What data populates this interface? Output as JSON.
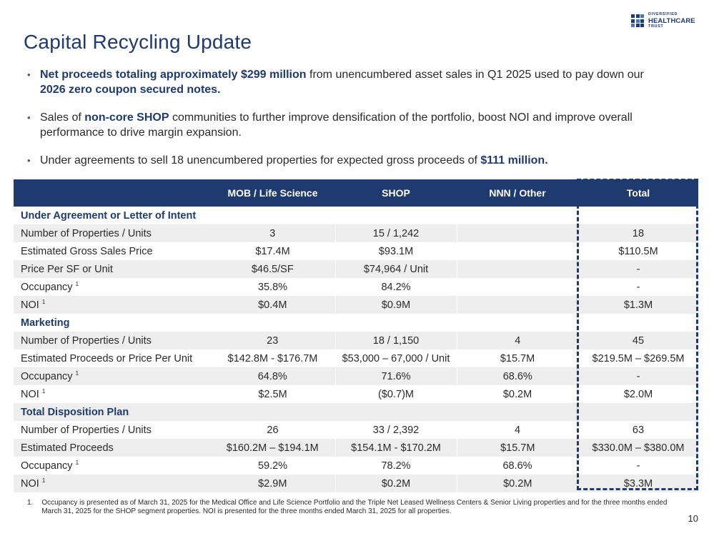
{
  "logo": {
    "line1": "DIVERSIFIED",
    "line2": "HEALTHCARE",
    "line3": "TRUST"
  },
  "title": "Capital Recycling Update",
  "bullets": [
    {
      "b1": "Net proceeds totaling approximately $299 million",
      "t1": " from unencumbered asset sales in Q1 2025 used to pay down our ",
      "b2": "2026 zero coupon secured notes."
    },
    {
      "t0": "Sales of ",
      "b1": "non-core SHOP",
      "t1": " communities to further improve densification of the portfolio, boost NOI and improve overall performance to drive margin expansion."
    },
    {
      "t0": "Under agreements to sell 18 unencumbered properties for expected gross proceeds of ",
      "b1": "$111 million."
    }
  ],
  "table": {
    "headers": [
      "",
      "MOB / Life Science",
      "SHOP",
      "NNN / Other",
      "Total"
    ],
    "sections": [
      {
        "name": "Under Agreement or Letter of Intent",
        "rows": [
          {
            "label": "Number of Properties / Units",
            "sup": "",
            "mob": "3",
            "shop": "15 / 1,242",
            "nnn": "",
            "total": "18"
          },
          {
            "label": "Estimated Gross Sales Price",
            "sup": "",
            "mob": "$17.4M",
            "shop": "$93.1M",
            "nnn": "",
            "total": "$110.5M"
          },
          {
            "label": "Price Per SF or Unit",
            "sup": "",
            "mob": "$46.5/SF",
            "shop": "$74,964 / Unit",
            "nnn": "",
            "total": "-"
          },
          {
            "label": "Occupancy",
            "sup": "1",
            "mob": "35.8%",
            "shop": "84.2%",
            "nnn": "",
            "total": "-"
          },
          {
            "label": "NOI",
            "sup": "1",
            "mob": "$0.4M",
            "shop": "$0.9M",
            "nnn": "",
            "total": "$1.3M"
          }
        ]
      },
      {
        "name": "Marketing",
        "rows": [
          {
            "label": "Number of Properties / Units",
            "sup": "",
            "mob": "23",
            "shop": "18 / 1,150",
            "nnn": "4",
            "total": "45"
          },
          {
            "label": "Estimated Proceeds or Price Per Unit",
            "sup": "",
            "mob": "$142.8M - $176.7M",
            "shop": "$53,000 – 67,000 / Unit",
            "nnn": "$15.7M",
            "total": "$219.5M – $269.5M"
          },
          {
            "label": "Occupancy",
            "sup": "1",
            "mob": "64.8%",
            "shop": "71.6%",
            "nnn": "68.6%",
            "total": "-"
          },
          {
            "label": "NOI",
            "sup": "1",
            "mob": "$2.5M",
            "shop": "($0.7)M",
            "nnn": "$0.2M",
            "total": "$2.0M"
          }
        ]
      },
      {
        "name": "Total Disposition Plan",
        "rows": [
          {
            "label": "Number of Properties / Units",
            "sup": "",
            "mob": "26",
            "shop": "33 / 2,392",
            "nnn": "4",
            "total": "63"
          },
          {
            "label": "Estimated Proceeds",
            "sup": "",
            "mob": "$160.2M – $194.1M",
            "shop": "$154.1M - $170.2M",
            "nnn": "$15.7M",
            "total": "$330.0M – $380.0M"
          },
          {
            "label": "Occupancy",
            "sup": "1",
            "mob": "59.2%",
            "shop": "78.2%",
            "nnn": "68.6%",
            "total": "-"
          },
          {
            "label": "NOI",
            "sup": "1",
            "mob": "$2.9M",
            "shop": "$0.2M",
            "nnn": "$0.2M",
            "total": "$3.3M"
          }
        ]
      }
    ]
  },
  "footnote": {
    "num": "1.",
    "text": "Occupancy is presented as of March 31, 2025 for the Medical Office and Life Science Portfolio and the Triple Net Leased Wellness Centers & Senior Living properties and for the three months ended March 31, 2025 for the SHOP segment properties. NOI is presented for the three months ended March 31, 2025 for all properties."
  },
  "page_number": "10",
  "colors": {
    "brand": "#1e3a6e",
    "shade": "#eeeeee"
  }
}
